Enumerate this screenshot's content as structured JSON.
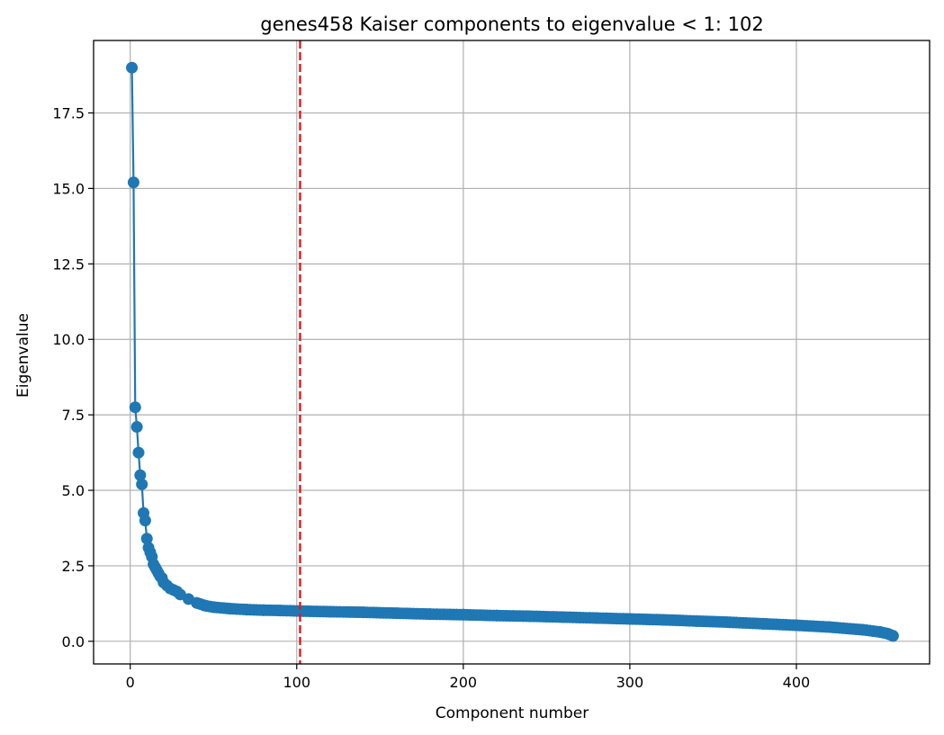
{
  "chart_data": {
    "type": "line",
    "title": "genes458 Kaiser components to eigenvalue < 1: 102",
    "xlabel": "Component number",
    "ylabel": "Eigenvalue",
    "xlim": [
      -22,
      480
    ],
    "ylim": [
      -0.75,
      19.9
    ],
    "grid": true,
    "x_ticks": [
      0,
      100,
      200,
      300,
      400
    ],
    "x_tick_labels": [
      "0",
      "100",
      "200",
      "300",
      "400"
    ],
    "y_ticks": [
      0,
      2.5,
      5,
      7.5,
      10,
      12.5,
      15,
      17.5
    ],
    "y_tick_labels": [
      "0.0",
      "2.5",
      "5.0",
      "7.5",
      "10.0",
      "12.5",
      "15.0",
      "17.5"
    ],
    "series": [
      {
        "color": "#1f77b4",
        "marker": "circle",
        "points": [
          [
            1,
            19.0
          ],
          [
            2,
            15.2
          ],
          [
            3,
            7.75
          ],
          [
            4,
            7.1
          ],
          [
            5,
            6.25
          ],
          [
            6,
            5.5
          ],
          [
            7,
            5.2
          ],
          [
            8,
            4.25
          ],
          [
            9,
            4.0
          ],
          [
            10,
            3.4
          ],
          [
            11,
            3.1
          ],
          [
            12,
            2.95
          ],
          [
            13,
            2.8
          ],
          [
            14,
            2.55
          ],
          [
            15,
            2.45
          ],
          [
            16,
            2.35
          ],
          [
            17,
            2.25
          ],
          [
            18,
            2.15
          ],
          [
            19,
            2.1
          ],
          [
            20,
            1.95
          ],
          [
            22,
            1.85
          ],
          [
            24,
            1.75
          ],
          [
            26,
            1.7
          ],
          [
            28,
            1.65
          ],
          [
            30,
            1.55
          ],
          [
            35,
            1.4
          ],
          [
            40,
            1.27
          ],
          [
            45,
            1.18
          ],
          [
            50,
            1.13
          ],
          [
            60,
            1.08
          ],
          [
            70,
            1.05
          ],
          [
            80,
            1.03
          ],
          [
            90,
            1.02
          ],
          [
            102,
            1.0
          ],
          [
            120,
            0.98
          ],
          [
            140,
            0.96
          ],
          [
            160,
            0.93
          ],
          [
            180,
            0.9
          ],
          [
            200,
            0.88
          ],
          [
            220,
            0.85
          ],
          [
            240,
            0.83
          ],
          [
            260,
            0.8
          ],
          [
            280,
            0.77
          ],
          [
            300,
            0.74
          ],
          [
            320,
            0.71
          ],
          [
            340,
            0.67
          ],
          [
            360,
            0.63
          ],
          [
            380,
            0.58
          ],
          [
            400,
            0.53
          ],
          [
            420,
            0.47
          ],
          [
            440,
            0.38
          ],
          [
            450,
            0.31
          ],
          [
            455,
            0.25
          ],
          [
            458,
            0.18
          ]
        ]
      }
    ],
    "vline": {
      "x": 102,
      "color": "#e41a1c",
      "style": "dashed"
    }
  }
}
